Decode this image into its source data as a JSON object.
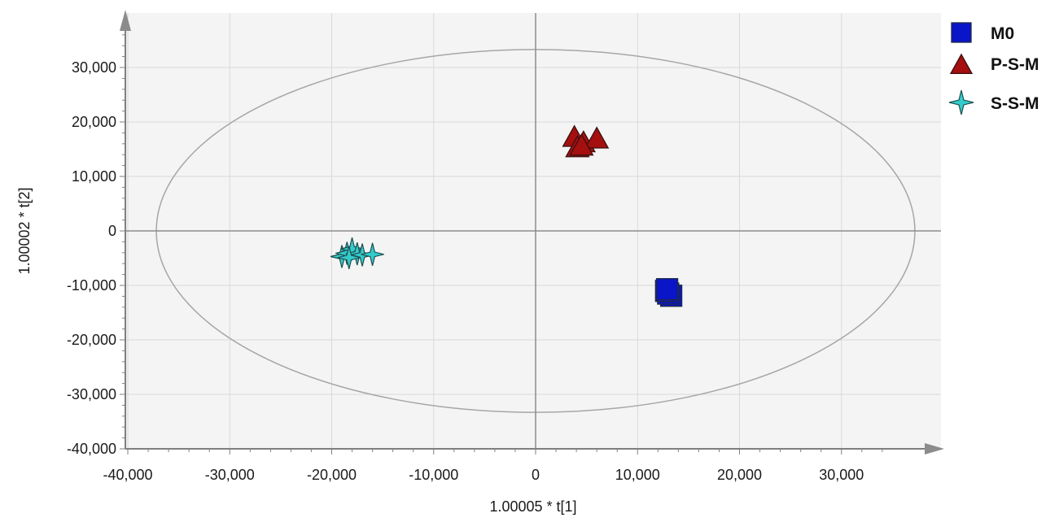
{
  "chart_data": {
    "type": "scatter",
    "title": "",
    "xlabel": "1.00005 * t[1]",
    "ylabel": "1.00002 * t[2]",
    "xlim": [
      -40000,
      40000
    ],
    "ylim": [
      -40000,
      40000
    ],
    "x_ticks": [
      -40000,
      -30000,
      -20000,
      -10000,
      0,
      10000,
      20000,
      30000
    ],
    "x_tick_labels": [
      "-40,000",
      "-30,000",
      "-20,000",
      "-10,000",
      "0",
      "10,000",
      "20,000",
      "30,000"
    ],
    "y_ticks": [
      -40000,
      -30000,
      -20000,
      -10000,
      0,
      10000,
      20000,
      30000
    ],
    "y_tick_labels": [
      "-40,000",
      "-30,000",
      "-20,000",
      "-10,000",
      "0",
      "10,000",
      "20,000",
      "30,000"
    ],
    "grid": true,
    "legend_position": "top-right, outside plot",
    "confidence_ellipse": {
      "center": [
        0,
        0
      ],
      "x_radius": 37200,
      "y_radius": 33300,
      "color": "#a6a6a6"
    },
    "series": [
      {
        "name": "M0",
        "marker": "square",
        "color": "#0a14c8",
        "points": [
          [
            13300,
            -11900
          ],
          [
            13000,
            -11500
          ],
          [
            12800,
            -11000
          ],
          [
            12900,
            -10700
          ]
        ]
      },
      {
        "name": "P-S-M",
        "marker": "triangle",
        "color": "#a50f0f",
        "points": [
          [
            3800,
            17200
          ],
          [
            4700,
            16200
          ],
          [
            6000,
            16900
          ],
          [
            4100,
            15300
          ],
          [
            4500,
            15600
          ]
        ]
      },
      {
        "name": "S-S-M",
        "marker": "star",
        "color": "#33cccc",
        "points": [
          [
            -19000,
            -4700
          ],
          [
            -18500,
            -4100
          ],
          [
            -18000,
            -3300
          ],
          [
            -17500,
            -4200
          ],
          [
            -17000,
            -4400
          ],
          [
            -16000,
            -4300
          ],
          [
            -18300,
            -4900
          ]
        ]
      }
    ]
  }
}
